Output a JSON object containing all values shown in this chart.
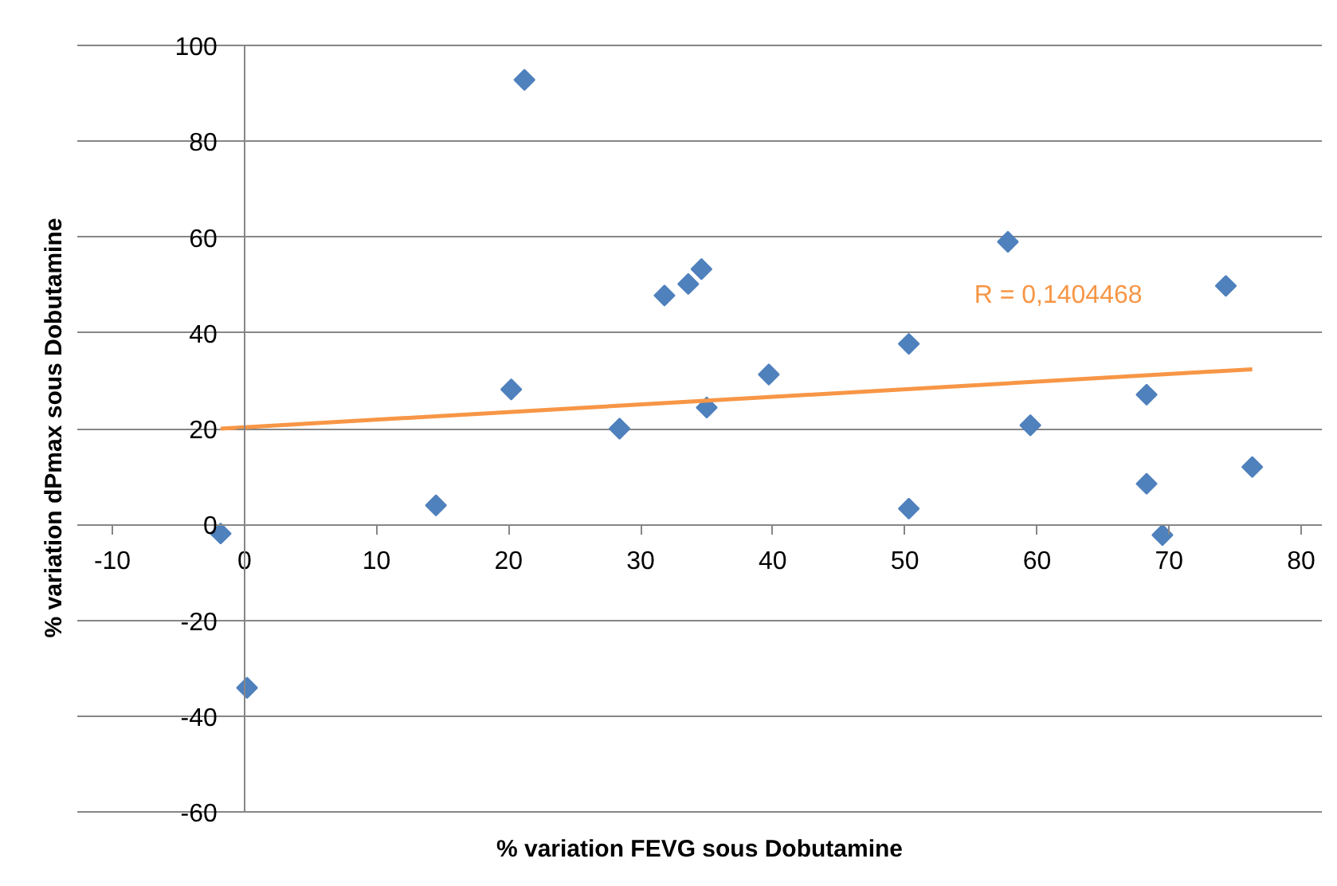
{
  "chart_data": {
    "type": "scatter",
    "xlabel": "% variation FEVG sous Dobutamine",
    "ylabel": "% variation dPmax sous Dobutamine",
    "xlim": [
      -10,
      80
    ],
    "xticks": [
      -10,
      0,
      10,
      20,
      30,
      40,
      50,
      60,
      70,
      80
    ],
    "ylim": [
      -60,
      100
    ],
    "yticks": [
      -60,
      -40,
      -20,
      0,
      20,
      40,
      60,
      80,
      100
    ],
    "grid": "y",
    "series": [
      {
        "color": "#4f81bd",
        "marker": "diamond",
        "x": [
          -1.8,
          0.2,
          14.5,
          20.2,
          21.2,
          28.4,
          31.8,
          33.6,
          34.6,
          35.0,
          39.7,
          50.3,
          50.3,
          57.8,
          59.5,
          68.3,
          68.3,
          69.5,
          74.3,
          76.3
        ],
        "values": [
          -1.9,
          -34.1,
          4.0,
          28.2,
          92.8,
          20.0,
          47.8,
          50.2,
          53.3,
          24.4,
          31.3,
          37.7,
          3.3,
          59.0,
          20.7,
          27.1,
          8.5,
          -2.2,
          49.8,
          12.0
        ]
      },
      {
        "type": "line",
        "color": "#f79646",
        "x": [
          -1.8,
          76.3
        ],
        "values": [
          20.0,
          32.4
        ]
      }
    ],
    "annotations": [
      "R = 0,1404468"
    ]
  }
}
